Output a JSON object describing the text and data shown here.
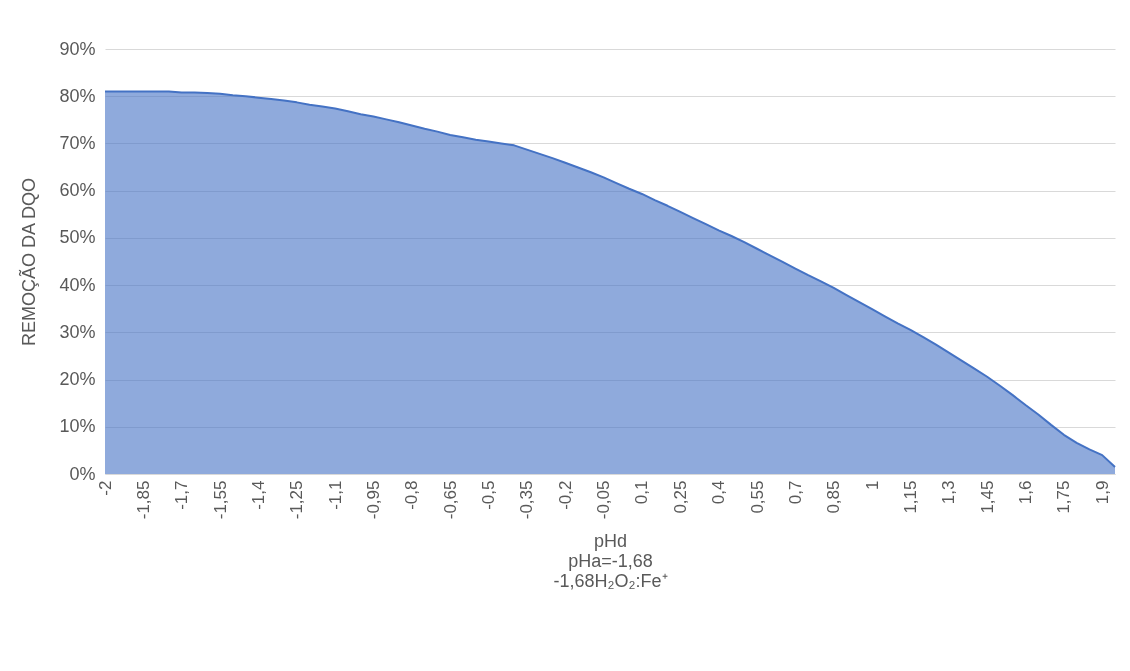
{
  "chart_data": {
    "type": "area",
    "xlabel": "pHd",
    "ylabel": "REMOÇÃO DA DQO",
    "annotations": [
      "pHa=-1,68",
      "-1,68H₂O₂:Fe⁺"
    ],
    "categories": [
      "-2",
      null,
      null,
      "-1,85",
      null,
      null,
      "-1,7",
      null,
      null,
      "-1,55",
      null,
      null,
      "-1,4",
      null,
      null,
      "-1,25",
      null,
      null,
      "-1,1",
      null,
      null,
      "-0,95",
      null,
      null,
      "-0,8",
      null,
      null,
      "-0,65",
      null,
      null,
      "-0,5",
      null,
      null,
      "-0,35",
      null,
      null,
      "-0,2",
      null,
      null,
      "-0,05",
      null,
      null,
      "0,1",
      null,
      null,
      "0,25",
      null,
      null,
      "0,4",
      null,
      null,
      "0,55",
      null,
      null,
      "0,7",
      null,
      null,
      "0,85",
      null,
      null,
      "1",
      null,
      null,
      "1,15",
      null,
      null,
      "1,3",
      null,
      null,
      "1,45",
      null,
      null,
      "1,6",
      null,
      null,
      "1,75",
      null,
      null,
      "1,9",
      null
    ],
    "series": [
      {
        "color": "#4472c4",
        "values": [
          81,
          81,
          81,
          81,
          81,
          81,
          80.8,
          80.8,
          80.7,
          80.5,
          80.2,
          80,
          79.7,
          79.4,
          79.1,
          78.7,
          78.2,
          77.8,
          77.4,
          76.8,
          76.2,
          75.7,
          75.1,
          74.5,
          73.8,
          73.1,
          72.5,
          71.8,
          71.3,
          70.8,
          70.4,
          70,
          69.6,
          68.7,
          67.8,
          66.9,
          65.9,
          64.9,
          63.9,
          62.8,
          61.6,
          60.4,
          59.3,
          58,
          56.8,
          55.5,
          54.2,
          52.9,
          51.6,
          50.4,
          49.1,
          47.7,
          46.3,
          44.9,
          43.5,
          42.1,
          40.8,
          39.4,
          37.9,
          36.4,
          34.9,
          33.4,
          31.9,
          30.5,
          29,
          27.4,
          25.7,
          24,
          22.3,
          20.6,
          18.7,
          16.7,
          14.6,
          12.6,
          10.4,
          8.3,
          6.6,
          5.2,
          4,
          1.5
        ]
      }
    ],
    "ylim": [
      0,
      90
    ],
    "yticks": [
      {
        "value": 0,
        "label": "0%"
      },
      {
        "value": 10,
        "label": "10%"
      },
      {
        "value": 20,
        "label": "20%"
      },
      {
        "value": 30,
        "label": "30%"
      },
      {
        "value": 40,
        "label": "40%"
      },
      {
        "value": 50,
        "label": "50%"
      },
      {
        "value": 60,
        "label": "60%"
      },
      {
        "value": 70,
        "label": "70%"
      },
      {
        "value": 80,
        "label": "80%"
      },
      {
        "value": 90,
        "label": "90%"
      }
    ],
    "grid": "y"
  }
}
